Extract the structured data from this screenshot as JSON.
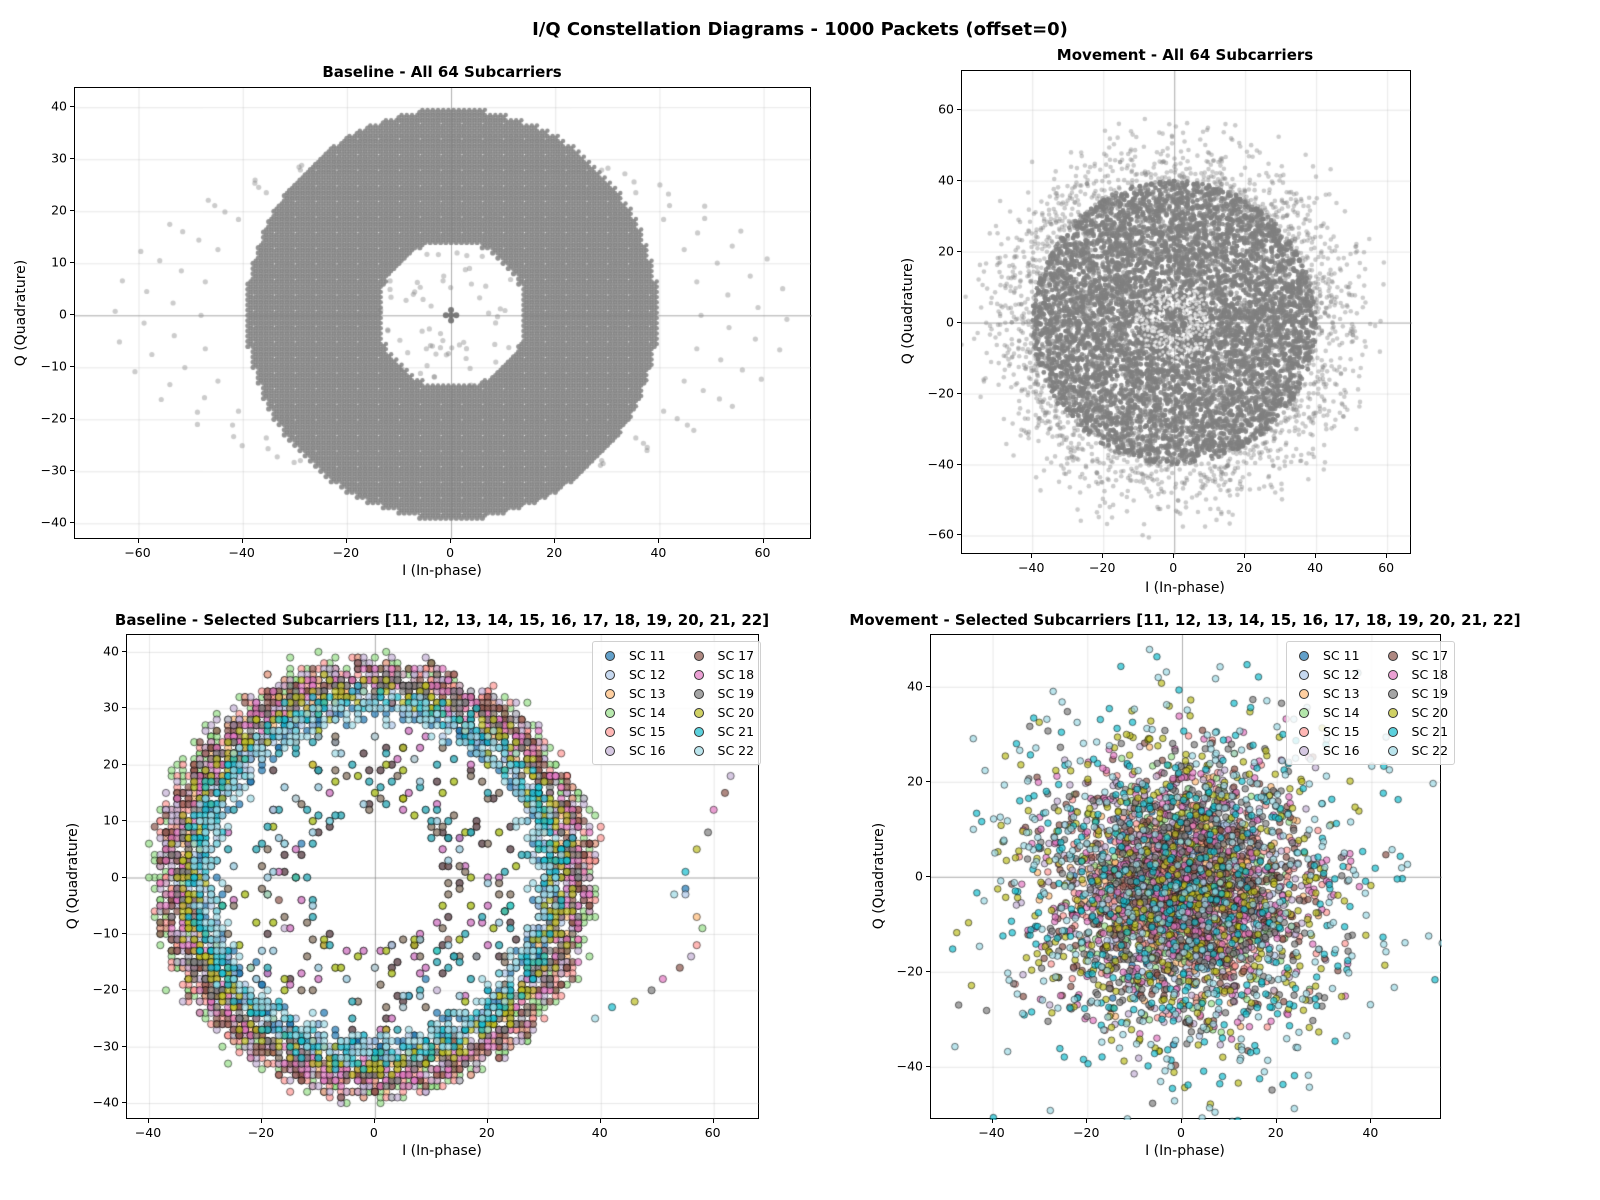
{
  "figure": {
    "suptitle": "I/Q Constellation Diagrams - 1000 Packets (offset=0)"
  },
  "chart_data": [
    {
      "id": "baseline_all",
      "type": "scatter",
      "title": "Baseline - All 64 Subcarriers",
      "xlabel": "I (In-phase)",
      "ylabel": "Q (Quadrature)",
      "xlim": [
        -72.2,
        69.3
      ],
      "ylim": [
        -43.2,
        43.7
      ],
      "xticks": [
        -60,
        -40,
        -20,
        0,
        20,
        40,
        60
      ],
      "yticks": [
        -40,
        -30,
        -20,
        -10,
        0,
        10,
        20,
        30,
        40
      ],
      "xtick_labels": [
        "−60",
        "−40",
        "−20",
        "0",
        "20",
        "40",
        "60"
      ],
      "ytick_labels": [
        "−40",
        "−30",
        "−20",
        "−10",
        "0",
        "10",
        "20",
        "30",
        "40"
      ],
      "grid": true,
      "legend": false,
      "series": [
        {
          "name": "All 64 Subcarriers",
          "color": "#808080",
          "alpha": 0.4,
          "description": "Dense annulus, integer grid points",
          "shape": "annulus",
          "r_inner": 14,
          "r_outer": 39.5,
          "grid": true,
          "center_cluster": [
            [
              0,
              0
            ],
            [
              0,
              1
            ],
            [
              1,
              0
            ],
            [
              0,
              -1
            ],
            [
              -1,
              0
            ]
          ],
          "outer_arc": {
            "description": "sparse outer elliptical arcs",
            "rx_range": [
              48,
              66
            ],
            "ry_range": [
              35,
              38
            ]
          }
        }
      ]
    },
    {
      "id": "movement_all",
      "type": "scatter",
      "title": "Movement - All 64 Subcarriers",
      "xlabel": "I (In-phase)",
      "ylabel": "Q (Quadrature)",
      "xlim": [
        -59.8,
        67.0
      ],
      "ylim": [
        -65.5,
        70.9
      ],
      "xticks": [
        -40,
        -20,
        0,
        20,
        40,
        60
      ],
      "yticks": [
        -60,
        -40,
        -20,
        0,
        20,
        40,
        60
      ],
      "xtick_labels": [
        "−40",
        "−20",
        "0",
        "20",
        "40",
        "60"
      ],
      "ytick_labels": [
        "−60",
        "−40",
        "−20",
        "0",
        "20",
        "40",
        "60"
      ],
      "grid": true,
      "legend": false,
      "series": [
        {
          "name": "All 64 Subcarriers",
          "color": "#808080",
          "alpha": 0.4,
          "description": "Dense disc with small hollow center, noisy fringe up to ~60",
          "shape": "noisy_disc",
          "r_core": 40,
          "r_fringe": 58,
          "hole_radius": 6,
          "hole_ring": [
            4,
            11
          ]
        }
      ]
    },
    {
      "id": "baseline_selected",
      "type": "scatter",
      "title": "Baseline - Selected Subcarriers [11, 12, 13, 14, 15, 16, 17, 18, 19, 20, 21, 22]",
      "xlabel": "I (In-phase)",
      "ylabel": "Q (Quadrature)",
      "xlim": [
        -43.9,
        68.2
      ],
      "ylim": [
        -43.0,
        43.0
      ],
      "xticks": [
        -40,
        -20,
        0,
        20,
        40,
        60
      ],
      "yticks": [
        -40,
        -30,
        -20,
        -10,
        0,
        10,
        20,
        30,
        40
      ],
      "xtick_labels": [
        "−40",
        "−20",
        "0",
        "20",
        "40",
        "60"
      ],
      "ytick_labels": [
        "−40",
        "−30",
        "−20",
        "−10",
        "0",
        "10",
        "20",
        "30",
        "40"
      ],
      "grid": true,
      "legend": true,
      "legend_position": "upper right",
      "series": [
        {
          "name": "SC 11",
          "color": "#1f77b4",
          "radius": 30.5
        },
        {
          "name": "SC 12",
          "color": "#aec7e8",
          "radius": 31.5
        },
        {
          "name": "SC 13",
          "color": "#ffbb78",
          "radius": 34.5
        },
        {
          "name": "SC 14",
          "color": "#98df8a",
          "radius": 37.5
        },
        {
          "name": "SC 15",
          "color": "#ff9896",
          "radius": 37.0
        },
        {
          "name": "SC 16",
          "color": "#c5b0d5",
          "radius": 36.5
        },
        {
          "name": "SC 17",
          "color": "#8c564b",
          "radius": 36.0
        },
        {
          "name": "SC 18",
          "color": "#e377c2",
          "radius": 35.0
        },
        {
          "name": "SC 19",
          "color": "#7f7f7f",
          "radius": 34.0
        },
        {
          "name": "SC 20",
          "color": "#bcbd22",
          "radius": 33.0
        },
        {
          "name": "SC 21",
          "color": "#17becf",
          "radius": 31.5
        },
        {
          "name": "SC 22",
          "color": "#9edae5",
          "radius": 30.0
        }
      ],
      "outlier_arc": [
        {
          "sc": "SC 16",
          "x": 63,
          "y": 18
        },
        {
          "sc": "SC 17",
          "x": 62,
          "y": 15
        },
        {
          "sc": "SC 18",
          "x": 60,
          "y": 12
        },
        {
          "sc": "SC 19",
          "x": 59,
          "y": 8
        },
        {
          "sc": "SC 20",
          "x": 57,
          "y": 5
        },
        {
          "sc": "SC 21",
          "x": 55,
          "y": 1
        },
        {
          "sc": "SC 11",
          "x": 55,
          "y": -2
        },
        {
          "sc": "SC 12",
          "x": 55,
          "y": -3
        },
        {
          "sc": "SC 22",
          "x": 53,
          "y": -3
        },
        {
          "sc": "SC 13",
          "x": 57,
          "y": -7
        },
        {
          "sc": "SC 14",
          "x": 58,
          "y": -9
        },
        {
          "sc": "SC 15",
          "x": 57,
          "y": -12
        },
        {
          "sc": "SC 16",
          "x": 56,
          "y": -14
        },
        {
          "sc": "SC 17",
          "x": 54,
          "y": -16
        },
        {
          "sc": "SC 18",
          "x": 51,
          "y": -18
        },
        {
          "sc": "SC 19",
          "x": 49,
          "y": -20
        },
        {
          "sc": "SC 20",
          "x": 46,
          "y": -22
        },
        {
          "sc": "SC 21",
          "x": 42,
          "y": -23
        },
        {
          "sc": "SC 22",
          "x": 39,
          "y": -25
        }
      ]
    },
    {
      "id": "movement_selected",
      "type": "scatter",
      "title": "Movement - Selected Subcarriers [11, 12, 13, 14, 15, 16, 17, 18, 19, 20, 21, 22]",
      "xlabel": "I (In-phase)",
      "ylabel": "Q (Quadrature)",
      "xlim": [
        -53.0,
        54.9
      ],
      "ylim": [
        -51.2,
        50.9
      ],
      "xticks": [
        -40,
        -20,
        0,
        20,
        40
      ],
      "yticks": [
        -40,
        -20,
        0,
        20,
        40
      ],
      "xtick_labels": [
        "−40",
        "−20",
        "0",
        "20",
        "40"
      ],
      "ytick_labels": [
        "−40",
        "−20",
        "0",
        "20",
        "40"
      ],
      "grid": true,
      "legend": true,
      "legend_position": "upper right",
      "series": [
        {
          "name": "SC 11",
          "color": "#1f77b4",
          "radius": 9
        },
        {
          "name": "SC 12",
          "color": "#aec7e8",
          "radius": 10
        },
        {
          "name": "SC 13",
          "color": "#ffbb78",
          "radius": 12
        },
        {
          "name": "SC 14",
          "color": "#98df8a",
          "radius": 12
        },
        {
          "name": "SC 15",
          "color": "#ff9896",
          "radius": 13
        },
        {
          "name": "SC 16",
          "color": "#c5b0d5",
          "radius": 14
        },
        {
          "name": "SC 17",
          "color": "#8c564b",
          "radius": 16
        },
        {
          "name": "SC 18",
          "color": "#e377c2",
          "radius": 17
        },
        {
          "name": "SC 19",
          "color": "#7f7f7f",
          "radius": 19
        },
        {
          "name": "SC 20",
          "color": "#bcbd22",
          "radius": 22
        },
        {
          "name": "SC 21",
          "color": "#17becf",
          "radius": 25
        },
        {
          "name": "SC 22",
          "color": "#9edae5",
          "radius": 27
        }
      ]
    }
  ]
}
